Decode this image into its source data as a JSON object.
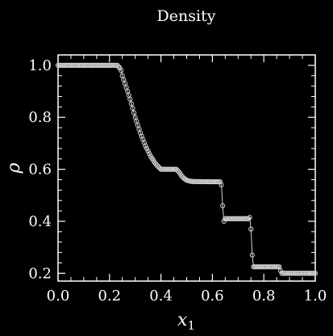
{
  "chart_data": {
    "type": "scatter",
    "title": "Density",
    "xlabel": "x",
    "xlabel_subscript": "1",
    "ylabel": "ρ",
    "xlim": [
      0.0,
      1.0
    ],
    "ylim": [
      0.17,
      1.04
    ],
    "x_ticks": [
      0.0,
      0.2,
      0.4,
      0.6,
      0.8,
      1.0
    ],
    "x_tick_labels": [
      "0.0",
      "0.2",
      "0.4",
      "0.6",
      "0.8",
      "1.0"
    ],
    "y_ticks": [
      0.2,
      0.4,
      0.6,
      0.8,
      1.0
    ],
    "y_tick_labels": [
      "0.2",
      "0.4",
      "0.6",
      "0.8",
      "1.0"
    ],
    "grid": false,
    "colors": {
      "background": "#000000",
      "axes": "#ffffff",
      "data": "#d0d0d0"
    },
    "series": [
      {
        "marker": "open-circle",
        "x": [
          0.0,
          0.23,
          0.235,
          0.24,
          0.245,
          0.25,
          0.26,
          0.28,
          0.3,
          0.32,
          0.34,
          0.36,
          0.38,
          0.4,
          0.41,
          0.42,
          0.46,
          0.47,
          0.48,
          0.49,
          0.5,
          0.51,
          0.52,
          0.6,
          0.63,
          0.635,
          0.64,
          0.645,
          0.65,
          0.74,
          0.745,
          0.75,
          0.755,
          0.76,
          0.86,
          0.865,
          0.87,
          1.0
        ],
        "y": [
          1.0,
          1.0,
          0.995,
          0.99,
          0.98,
          0.96,
          0.93,
          0.87,
          0.8,
          0.74,
          0.69,
          0.65,
          0.62,
          0.6,
          0.6,
          0.6,
          0.6,
          0.59,
          0.575,
          0.565,
          0.558,
          0.555,
          0.553,
          0.552,
          0.552,
          0.54,
          0.46,
          0.4,
          0.41,
          0.41,
          0.415,
          0.37,
          0.27,
          0.225,
          0.225,
          0.21,
          0.2,
          0.2
        ]
      }
    ]
  }
}
